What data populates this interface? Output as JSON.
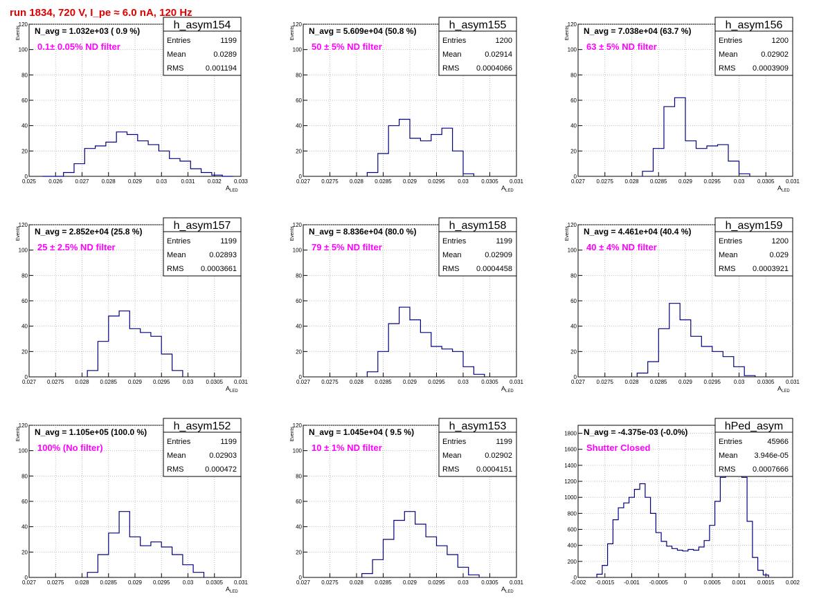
{
  "page_title": "run 1834,   720 V, I_pe ≈ 6.0 nA, 120 Hz",
  "stats_labels": {
    "entries": "Entries",
    "mean": "Mean",
    "rms": "RMS"
  },
  "colors": {
    "hist_line": "#000080",
    "title": "#e00000",
    "filter_label": "#ff00ff",
    "grid": "#b0b0b0"
  },
  "chart_data": [
    {
      "type": "bar",
      "hist_name": "h_asym154",
      "ylabel": "Events",
      "xlabel": "A",
      "xlabel_sub": "LED",
      "n_avg_label": "N_avg = 1.032e+03 ( 0.9 %)",
      "filter_label": "0.1± 0.05% ND filter",
      "stats": {
        "entries": "1199",
        "mean": "0.0289",
        "rms": "0.001194"
      },
      "xlim": [
        0.025,
        0.033
      ],
      "ylim": [
        0,
        120
      ],
      "xticks": [
        0.025,
        0.026,
        0.027,
        0.028,
        0.029,
        0.03,
        0.031,
        0.032,
        0.033
      ],
      "xtick_labels": [
        "0.025",
        "0.026",
        "0.027",
        "0.028",
        "0.029",
        "0.03",
        "0.031",
        "0.032",
        "0.033"
      ],
      "yticks": [
        0,
        20,
        40,
        60,
        80,
        100,
        120
      ],
      "ytick_labels": [
        "0",
        "20",
        "40",
        "60",
        "80",
        "100",
        "120"
      ],
      "grid": true,
      "bins": [
        0.0255,
        0.0259,
        0.0263,
        0.0267,
        0.0271,
        0.0275,
        0.0279,
        0.0283,
        0.0287,
        0.0291,
        0.0295,
        0.0299,
        0.0303,
        0.0307,
        0.0311,
        0.0315,
        0.0319,
        0.0323,
        0.0327
      ],
      "counts": [
        0,
        0,
        3,
        10,
        22,
        24,
        27,
        35,
        33,
        28,
        25,
        20,
        14,
        12,
        6,
        3,
        1,
        0
      ]
    },
    {
      "type": "bar",
      "hist_name": "h_asym155",
      "ylabel": "Events",
      "xlabel": "A",
      "xlabel_sub": "LED",
      "n_avg_label": "N_avg = 5.609e+04 (50.8 %)",
      "filter_label": "50 ± 5% ND filter",
      "stats": {
        "entries": "1200",
        "mean": "0.02914",
        "rms": "0.0004066"
      },
      "xlim": [
        0.027,
        0.031
      ],
      "ylim": [
        0,
        120
      ],
      "xticks": [
        0.027,
        0.0275,
        0.028,
        0.0285,
        0.029,
        0.0295,
        0.03,
        0.0305,
        0.031
      ],
      "xtick_labels": [
        "0.027",
        "0.0275",
        "0.028",
        "0.0285",
        "0.029",
        "0.0295",
        "0.03",
        "0.0305",
        "0.031"
      ],
      "yticks": [
        0,
        20,
        40,
        60,
        80,
        100,
        120
      ],
      "ytick_labels": [
        "0",
        "20",
        "40",
        "60",
        "80",
        "100",
        "120"
      ],
      "grid": true,
      "bins": [
        0.0282,
        0.0284,
        0.0286,
        0.0288,
        0.029,
        0.0292,
        0.0294,
        0.0296,
        0.0298,
        0.03,
        0.0302
      ],
      "counts": [
        3,
        18,
        40,
        45,
        30,
        28,
        33,
        38,
        20,
        2
      ]
    },
    {
      "type": "bar",
      "hist_name": "h_asym156",
      "ylabel": "Events",
      "xlabel": "A",
      "xlabel_sub": "LED",
      "n_avg_label": "N_avg = 7.038e+04 (63.7 %)",
      "filter_label": "63 ± 5% ND filter",
      "stats": {
        "entries": "1200",
        "mean": "0.02902",
        "rms": "0.0003909"
      },
      "xlim": [
        0.027,
        0.031
      ],
      "ylim": [
        0,
        120
      ],
      "xticks": [
        0.027,
        0.0275,
        0.028,
        0.0285,
        0.029,
        0.0295,
        0.03,
        0.0305,
        0.031
      ],
      "xtick_labels": [
        "0.027",
        "0.0275",
        "0.028",
        "0.0285",
        "0.029",
        "0.0295",
        "0.03",
        "0.0305",
        "0.031"
      ],
      "yticks": [
        0,
        20,
        40,
        60,
        80,
        100,
        120
      ],
      "ytick_labels": [
        "0",
        "20",
        "40",
        "60",
        "80",
        "100",
        "120"
      ],
      "grid": true,
      "bins": [
        0.0282,
        0.0284,
        0.0286,
        0.0288,
        0.029,
        0.0292,
        0.0294,
        0.0296,
        0.0298,
        0.03,
        0.0302
      ],
      "counts": [
        4,
        22,
        55,
        62,
        28,
        22,
        24,
        25,
        12,
        2
      ]
    },
    {
      "type": "bar",
      "hist_name": "h_asym157",
      "ylabel": "Events",
      "xlabel": "A",
      "xlabel_sub": "LED",
      "n_avg_label": "N_avg = 2.852e+04 (25.8 %)",
      "filter_label": "25 ± 2.5% ND filter",
      "stats": {
        "entries": "1199",
        "mean": "0.02893",
        "rms": "0.0003661"
      },
      "xlim": [
        0.027,
        0.031
      ],
      "ylim": [
        0,
        120
      ],
      "xticks": [
        0.027,
        0.0275,
        0.028,
        0.0285,
        0.029,
        0.0295,
        0.03,
        0.0305,
        0.031
      ],
      "xtick_labels": [
        "0.027",
        "0.0275",
        "0.028",
        "0.0285",
        "0.029",
        "0.0295",
        "0.03",
        "0.0305",
        "0.031"
      ],
      "yticks": [
        0,
        20,
        40,
        60,
        80,
        100,
        120
      ],
      "ytick_labels": [
        "0",
        "20",
        "40",
        "60",
        "80",
        "100",
        "120"
      ],
      "grid": true,
      "bins": [
        0.0281,
        0.0283,
        0.0285,
        0.0287,
        0.0289,
        0.0291,
        0.0293,
        0.0295,
        0.0297,
        0.0299
      ],
      "counts": [
        5,
        28,
        48,
        52,
        38,
        35,
        32,
        18,
        5
      ]
    },
    {
      "type": "bar",
      "hist_name": "h_asym158",
      "ylabel": "Events",
      "xlabel": "A",
      "xlabel_sub": "LED",
      "n_avg_label": "N_avg = 8.836e+04 (80.0 %)",
      "filter_label": "79 ± 5% ND filter",
      "stats": {
        "entries": "1199",
        "mean": "0.02909",
        "rms": "0.0004458"
      },
      "xlim": [
        0.027,
        0.031
      ],
      "ylim": [
        0,
        120
      ],
      "xticks": [
        0.027,
        0.0275,
        0.028,
        0.0285,
        0.029,
        0.0295,
        0.03,
        0.0305,
        0.031
      ],
      "xtick_labels": [
        "0.027",
        "0.0275",
        "0.028",
        "0.0285",
        "0.029",
        "0.0295",
        "0.03",
        "0.0305",
        "0.031"
      ],
      "yticks": [
        0,
        20,
        40,
        60,
        80,
        100,
        120
      ],
      "ytick_labels": [
        "0",
        "20",
        "40",
        "60",
        "80",
        "100",
        "120"
      ],
      "grid": true,
      "bins": [
        0.0282,
        0.0284,
        0.0286,
        0.0288,
        0.029,
        0.0292,
        0.0294,
        0.0296,
        0.0298,
        0.03,
        0.0302,
        0.0304
      ],
      "counts": [
        4,
        20,
        42,
        55,
        45,
        35,
        24,
        22,
        20,
        8,
        2
      ]
    },
    {
      "type": "bar",
      "hist_name": "h_asym159",
      "ylabel": "Events",
      "xlabel": "A",
      "xlabel_sub": "LED",
      "n_avg_label": "N_avg = 4.461e+04 (40.4 %)",
      "filter_label": "40 ± 4% ND filter",
      "stats": {
        "entries": "1200",
        "mean": "0.029",
        "rms": "0.0003921"
      },
      "xlim": [
        0.027,
        0.031
      ],
      "ylim": [
        0,
        120
      ],
      "xticks": [
        0.027,
        0.0275,
        0.028,
        0.0285,
        0.029,
        0.0295,
        0.03,
        0.0305,
        0.031
      ],
      "xtick_labels": [
        "0.027",
        "0.0275",
        "0.028",
        "0.0285",
        "0.029",
        "0.0295",
        "0.03",
        "0.0305",
        "0.031"
      ],
      "yticks": [
        0,
        20,
        40,
        60,
        80,
        100,
        120
      ],
      "ytick_labels": [
        "0",
        "20",
        "40",
        "60",
        "80",
        "100",
        "120"
      ],
      "grid": true,
      "bins": [
        0.0281,
        0.0283,
        0.0285,
        0.0287,
        0.0289,
        0.0291,
        0.0293,
        0.0295,
        0.0297,
        0.0299,
        0.0301,
        0.0303
      ],
      "counts": [
        3,
        12,
        38,
        58,
        45,
        32,
        24,
        20,
        16,
        8,
        1
      ]
    },
    {
      "type": "bar",
      "hist_name": "h_asym152",
      "ylabel": "Events",
      "xlabel": "A",
      "xlabel_sub": "LED",
      "n_avg_label": "N_avg = 1.105e+05 (100.0 %)",
      "filter_label": "100% (No filter)",
      "stats": {
        "entries": "1199",
        "mean": "0.02903",
        "rms": "0.000472"
      },
      "xlim": [
        0.027,
        0.031
      ],
      "ylim": [
        0,
        120
      ],
      "xticks": [
        0.027,
        0.0275,
        0.028,
        0.0285,
        0.029,
        0.0295,
        0.03,
        0.0305,
        0.031
      ],
      "xtick_labels": [
        "0.027",
        "0.0275",
        "0.028",
        "0.0285",
        "0.029",
        "0.0295",
        "0.03",
        "0.0305",
        "0.031"
      ],
      "yticks": [
        0,
        20,
        40,
        60,
        80,
        100,
        120
      ],
      "ytick_labels": [
        "0",
        "20",
        "40",
        "60",
        "80",
        "100",
        "120"
      ],
      "grid": true,
      "bins": [
        0.0281,
        0.0283,
        0.0285,
        0.0287,
        0.0289,
        0.0291,
        0.0293,
        0.0295,
        0.0297,
        0.0299,
        0.0301,
        0.0303
      ],
      "counts": [
        4,
        18,
        35,
        52,
        32,
        25,
        28,
        24,
        18,
        10,
        4
      ]
    },
    {
      "type": "bar",
      "hist_name": "h_asym153",
      "ylabel": "Events",
      "xlabel": "A",
      "xlabel_sub": "LED",
      "n_avg_label": "N_avg = 1.045e+04 ( 9.5 %)",
      "filter_label": "10 ± 1% ND filter",
      "stats": {
        "entries": "1199",
        "mean": "0.02902",
        "rms": "0.0004151"
      },
      "xlim": [
        0.027,
        0.031
      ],
      "ylim": [
        0,
        120
      ],
      "xticks": [
        0.027,
        0.0275,
        0.028,
        0.0285,
        0.029,
        0.0295,
        0.03,
        0.0305,
        0.031
      ],
      "xtick_labels": [
        "0.027",
        "0.0275",
        "0.028",
        "0.0285",
        "0.029",
        "0.0295",
        "0.03",
        "0.0305",
        "0.031"
      ],
      "yticks": [
        0,
        20,
        40,
        60,
        80,
        100,
        120
      ],
      "ytick_labels": [
        "0",
        "20",
        "40",
        "60",
        "80",
        "100",
        "120"
      ],
      "grid": true,
      "bins": [
        0.0281,
        0.0283,
        0.0285,
        0.0287,
        0.0289,
        0.0291,
        0.0293,
        0.0295,
        0.0297,
        0.0299,
        0.0301,
        0.0303
      ],
      "counts": [
        3,
        14,
        30,
        45,
        52,
        42,
        32,
        25,
        18,
        8,
        2
      ]
    },
    {
      "type": "bar",
      "hist_name": "hPed_asym",
      "ylabel": "",
      "xlabel": "",
      "xlabel_sub": "",
      "n_avg_label": "N_avg = -4.375e-03 (-0.0%)",
      "filter_label": "Shutter Closed",
      "stats": {
        "entries": "45966",
        "mean": "3.946e-05",
        "rms": "0.0007666"
      },
      "xlim": [
        -0.002,
        0.002
      ],
      "ylim": [
        0,
        1900
      ],
      "xticks": [
        -0.002,
        -0.0015,
        -0.001,
        -0.0005,
        0,
        0.0005,
        0.001,
        0.0015,
        0.002
      ],
      "xtick_labels": [
        "-0.002",
        "-0.0015",
        "-0.001",
        "-0.0005",
        "0",
        "0.0005",
        "0.001",
        "0.0015",
        "0.002"
      ],
      "yticks": [
        0,
        200,
        400,
        600,
        800,
        1000,
        1200,
        1400,
        1600,
        1800
      ],
      "ytick_labels": [
        "0",
        "200",
        "400",
        "600",
        "800",
        "1000",
        "1200",
        "1400",
        "1600",
        "1800"
      ],
      "grid": true,
      "bins": [
        -0.00165,
        -0.00155,
        -0.00145,
        -0.00135,
        -0.00125,
        -0.00115,
        -0.00105,
        -0.00095,
        -0.00085,
        -0.00075,
        -0.00065,
        -0.00055,
        -0.00045,
        -0.00035,
        -0.00025,
        -0.00015,
        -5e-05,
        5e-05,
        0.00015,
        0.00025,
        0.00035,
        0.00045,
        0.00055,
        0.00065,
        0.00075,
        0.00085,
        0.00095,
        0.00105,
        0.00115,
        0.00125,
        0.00135,
        0.00145,
        0.00155
      ],
      "counts": [
        40,
        150,
        420,
        720,
        870,
        930,
        1000,
        1100,
        1170,
        1000,
        800,
        560,
        450,
        390,
        360,
        340,
        330,
        350,
        340,
        380,
        460,
        650,
        950,
        1250,
        1650,
        1820,
        1700,
        1250,
        700,
        250,
        90,
        30
      ]
    }
  ]
}
